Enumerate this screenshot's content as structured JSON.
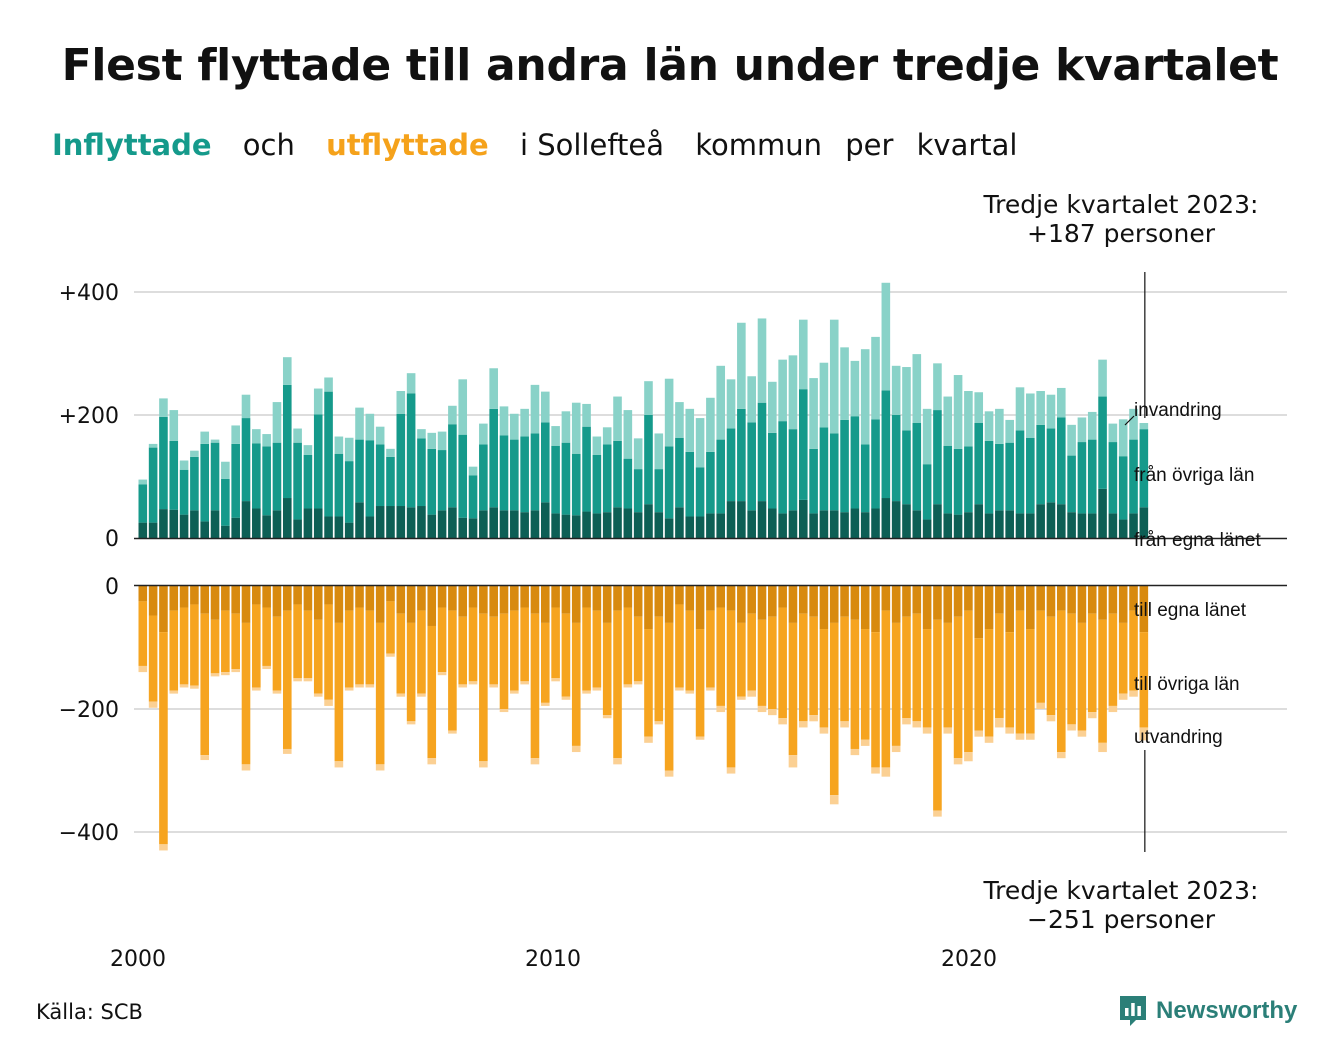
{
  "title": "Flest flyttade till andra län under tredje kvartalet",
  "subtitle": {
    "part1": "Inflyttade",
    "part2": "och",
    "part3": "utflyttade",
    "part4": "i Sollefteå",
    "part5": "kommun",
    "part6": "per",
    "part7": "kvartal"
  },
  "callout_top": {
    "line1": "Tredje kvartalet 2023:",
    "line2": "+187 personer"
  },
  "callout_bottom": {
    "line1": "Tredje kvartalet 2023:",
    "line2": "−251 personer"
  },
  "source": "Källa: SCB",
  "brand": {
    "name": "Newsworthy",
    "icon": "bar-chart-logo-icon"
  },
  "colors": {
    "in_dark": "#0d5f55",
    "in_mid": "#159a8b",
    "in_light": "#89d2c8",
    "out_dark": "#d88a0f",
    "out_mid": "#f6a41f",
    "out_light": "#fbd093",
    "grid": "#dddddd",
    "axis": "#222222"
  },
  "chart_data": {
    "type": "bar",
    "stacked": true,
    "x_tick_labels": [
      "2000",
      "2010",
      "2020"
    ],
    "x_range": [
      "2000 Q1",
      "2023 Q3"
    ],
    "top_panel": {
      "ylim": [
        0,
        400
      ],
      "y_tick_labels": [
        "0",
        "+200",
        "+400"
      ],
      "series_labels": [
        "invandring",
        "från övriga län",
        "från egna länet"
      ],
      "egna": [
        25,
        25,
        47,
        46,
        38,
        45,
        27,
        45,
        20,
        33,
        60,
        48,
        37,
        45,
        65,
        30,
        48,
        48,
        35,
        35,
        25,
        58,
        35,
        52,
        52,
        52,
        50,
        52,
        38,
        45,
        50,
        33,
        32,
        45,
        50,
        45,
        45,
        42,
        45,
        58,
        40,
        38,
        37,
        43,
        40,
        42,
        50,
        48,
        42,
        55,
        42,
        32,
        50,
        35,
        35,
        40,
        40,
        60,
        60,
        45,
        60,
        48,
        40,
        45,
        62,
        40,
        45,
        45,
        42,
        48,
        42,
        48,
        65,
        60,
        55,
        45,
        30,
        55,
        40,
        38,
        42,
        55,
        40,
        45,
        45,
        40,
        40,
        55,
        58,
        55,
        42,
        40,
        40,
        80,
        40,
        30,
        40,
        50
      ],
      "ovriga": [
        62,
        122,
        150,
        112,
        73,
        87,
        126,
        110,
        76,
        120,
        135,
        106,
        112,
        110,
        184,
        125,
        87,
        153,
        203,
        102,
        100,
        102,
        124,
        100,
        80,
        150,
        185,
        110,
        107,
        98,
        135,
        135,
        70,
        107,
        160,
        122,
        115,
        123,
        125,
        130,
        110,
        117,
        100,
        138,
        95,
        110,
        108,
        81,
        70,
        145,
        70,
        117,
        113,
        105,
        80,
        100,
        120,
        118,
        150,
        143,
        160,
        123,
        150,
        132,
        180,
        105,
        135,
        125,
        150,
        150,
        110,
        145,
        175,
        140,
        120,
        142,
        90,
        153,
        110,
        107,
        107,
        132,
        118,
        108,
        110,
        135,
        123,
        129,
        120,
        141,
        92,
        116,
        120,
        150,
        116,
        103,
        120,
        127
      ],
      "inv": [
        8,
        6,
        30,
        50,
        15,
        10,
        20,
        5,
        28,
        30,
        38,
        23,
        20,
        66,
        45,
        23,
        16,
        42,
        23,
        28,
        38,
        52,
        43,
        29,
        13,
        37,
        33,
        15,
        26,
        30,
        30,
        90,
        14,
        34,
        66,
        47,
        42,
        45,
        79,
        50,
        32,
        51,
        83,
        37,
        30,
        28,
        72,
        79,
        50,
        55,
        58,
        110,
        58,
        70,
        80,
        88,
        120,
        80,
        140,
        75,
        137,
        83,
        100,
        120,
        113,
        115,
        105,
        185,
        118,
        90,
        155,
        134,
        175,
        80,
        103,
        112,
        90,
        76,
        80,
        120,
        90,
        50,
        48,
        57,
        37,
        70,
        72,
        55,
        55,
        48,
        50,
        40,
        45,
        60,
        30,
        60,
        50,
        10
      ]
    },
    "bottom_panel": {
      "ylim": [
        -400,
        0
      ],
      "y_tick_labels": [
        "0",
        "−200",
        "−400"
      ],
      "series_labels": [
        "till egna länet",
        "till övriga län",
        "utvandring"
      ],
      "egna": [
        25,
        48,
        75,
        40,
        35,
        30,
        45,
        55,
        40,
        45,
        60,
        30,
        35,
        50,
        40,
        30,
        40,
        55,
        30,
        60,
        40,
        35,
        40,
        60,
        25,
        45,
        60,
        40,
        65,
        35,
        40,
        50,
        35,
        45,
        50,
        45,
        40,
        35,
        45,
        60,
        35,
        45,
        60,
        35,
        40,
        60,
        40,
        35,
        50,
        70,
        50,
        60,
        30,
        40,
        70,
        40,
        35,
        40,
        60,
        45,
        55,
        50,
        35,
        60,
        45,
        50,
        70,
        60,
        50,
        55,
        70,
        75,
        40,
        60,
        50,
        45,
        70,
        55,
        60,
        50,
        40,
        85,
        70,
        45,
        75,
        40,
        70,
        40,
        50,
        40,
        45,
        60,
        45,
        55,
        45,
        60,
        40,
        75
      ],
      "ovriga": [
        105,
        140,
        345,
        130,
        125,
        132,
        230,
        87,
        100,
        90,
        230,
        135,
        95,
        120,
        225,
        120,
        110,
        120,
        155,
        225,
        125,
        125,
        120,
        230,
        85,
        130,
        160,
        135,
        215,
        105,
        195,
        110,
        120,
        240,
        110,
        155,
        130,
        120,
        235,
        130,
        115,
        135,
        200,
        135,
        125,
        150,
        240,
        125,
        105,
        175,
        170,
        240,
        135,
        130,
        175,
        125,
        160,
        255,
        120,
        125,
        140,
        150,
        180,
        215,
        175,
        160,
        160,
        280,
        170,
        210,
        180,
        220,
        255,
        200,
        165,
        175,
        160,
        310,
        170,
        230,
        230,
        150,
        175,
        170,
        155,
        200,
        170,
        150,
        160,
        230,
        180,
        175,
        160,
        200,
        150,
        115,
        130,
        155
      ],
      "utv": [
        10,
        10,
        10,
        5,
        5,
        5,
        8,
        5,
        5,
        5,
        10,
        5,
        5,
        5,
        8,
        5,
        5,
        5,
        10,
        10,
        5,
        5,
        5,
        10,
        5,
        5,
        5,
        5,
        10,
        5,
        5,
        5,
        5,
        10,
        5,
        5,
        5,
        5,
        10,
        5,
        5,
        5,
        10,
        5,
        5,
        5,
        10,
        5,
        5,
        10,
        5,
        10,
        5,
        5,
        5,
        5,
        10,
        10,
        5,
        10,
        10,
        10,
        10,
        20,
        10,
        10,
        10,
        15,
        10,
        10,
        10,
        10,
        15,
        10,
        10,
        10,
        10,
        10,
        10,
        10,
        15,
        10,
        10,
        15,
        10,
        10,
        10,
        10,
        10,
        10,
        10,
        10,
        10,
        15,
        10,
        10,
        10,
        21
      ]
    }
  }
}
